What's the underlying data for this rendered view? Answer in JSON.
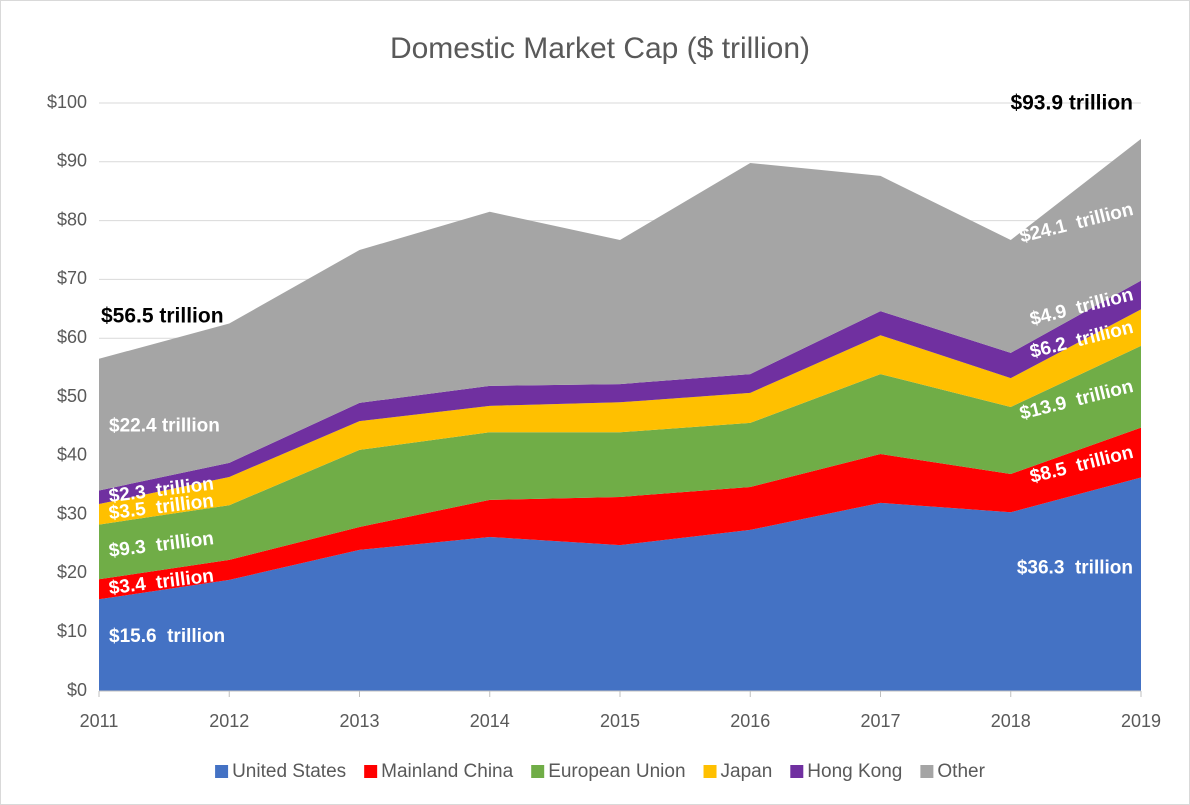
{
  "chart_data": {
    "type": "stacked_area",
    "title": "Domestic Market Cap ($ trillion)",
    "categories": [
      "2011",
      "2012",
      "2013",
      "2014",
      "2015",
      "2016",
      "2017",
      "2018",
      "2019"
    ],
    "ylim": [
      0,
      100
    ],
    "yticks": [
      {
        "value": 0,
        "label": "$0"
      },
      {
        "value": 10,
        "label": "$10"
      },
      {
        "value": 20,
        "label": "$20"
      },
      {
        "value": 30,
        "label": "$30"
      },
      {
        "value": 40,
        "label": "$40"
      },
      {
        "value": 50,
        "label": "$50"
      },
      {
        "value": 60,
        "label": "$60"
      },
      {
        "value": 70,
        "label": "$70"
      },
      {
        "value": 80,
        "label": "$80"
      },
      {
        "value": 90,
        "label": "$90"
      },
      {
        "value": 100,
        "label": "$100"
      }
    ],
    "grid": true,
    "legend": "bottom",
    "series": [
      {
        "name": "United States",
        "color": "#4472c4",
        "values": [
          15.6,
          18.9,
          24.0,
          26.2,
          24.8,
          27.4,
          32.0,
          30.4,
          36.3
        ],
        "value_labels": [
          "$15.6  trillion",
          null,
          null,
          null,
          null,
          null,
          null,
          null,
          "$36.3  trillion"
        ]
      },
      {
        "name": "Mainland China",
        "color": "#ff0000",
        "values": [
          3.4,
          3.4,
          3.9,
          6.3,
          8.2,
          7.3,
          8.3,
          6.5,
          8.5
        ],
        "value_labels": [
          "$3.4  trillion",
          null,
          null,
          null,
          null,
          null,
          null,
          null,
          "$8.5  trillion"
        ]
      },
      {
        "name": "European Union",
        "color": "#70ad47",
        "values": [
          9.3,
          9.3,
          13.1,
          11.5,
          11.0,
          10.9,
          13.6,
          11.4,
          13.9
        ],
        "value_labels": [
          "$9.3  trillion",
          null,
          null,
          null,
          null,
          null,
          null,
          null,
          "$13.9  trillion"
        ]
      },
      {
        "name": "Japan",
        "color": "#ffc000",
        "values": [
          3.5,
          4.8,
          4.9,
          4.5,
          5.1,
          5.1,
          6.6,
          4.9,
          6.2
        ],
        "value_labels": [
          "$3.5  trillion",
          null,
          null,
          null,
          null,
          null,
          null,
          null,
          "$6.2  trillion"
        ]
      },
      {
        "name": "Hong Kong",
        "color": "#7030a0",
        "values": [
          2.3,
          2.4,
          3.1,
          3.4,
          3.1,
          3.2,
          4.1,
          4.3,
          4.9
        ],
        "value_labels": [
          "$2.3  trillion",
          null,
          null,
          null,
          null,
          null,
          null,
          null,
          "$4.9  trillion"
        ]
      },
      {
        "name": "Other",
        "color": "#a5a5a5",
        "values": [
          22.4,
          23.7,
          26.0,
          29.6,
          24.5,
          35.9,
          23.0,
          19.2,
          24.1
        ],
        "value_labels": [
          "$22.4 trillion",
          null,
          null,
          null,
          null,
          null,
          null,
          null,
          "$24.1  trillion"
        ]
      }
    ],
    "annotations": [
      {
        "text": "$56.5 trillion",
        "x": "2011",
        "y": 56.5
      },
      {
        "text": "$93.9 trillion",
        "x": "2019",
        "y": 93.9
      }
    ]
  }
}
